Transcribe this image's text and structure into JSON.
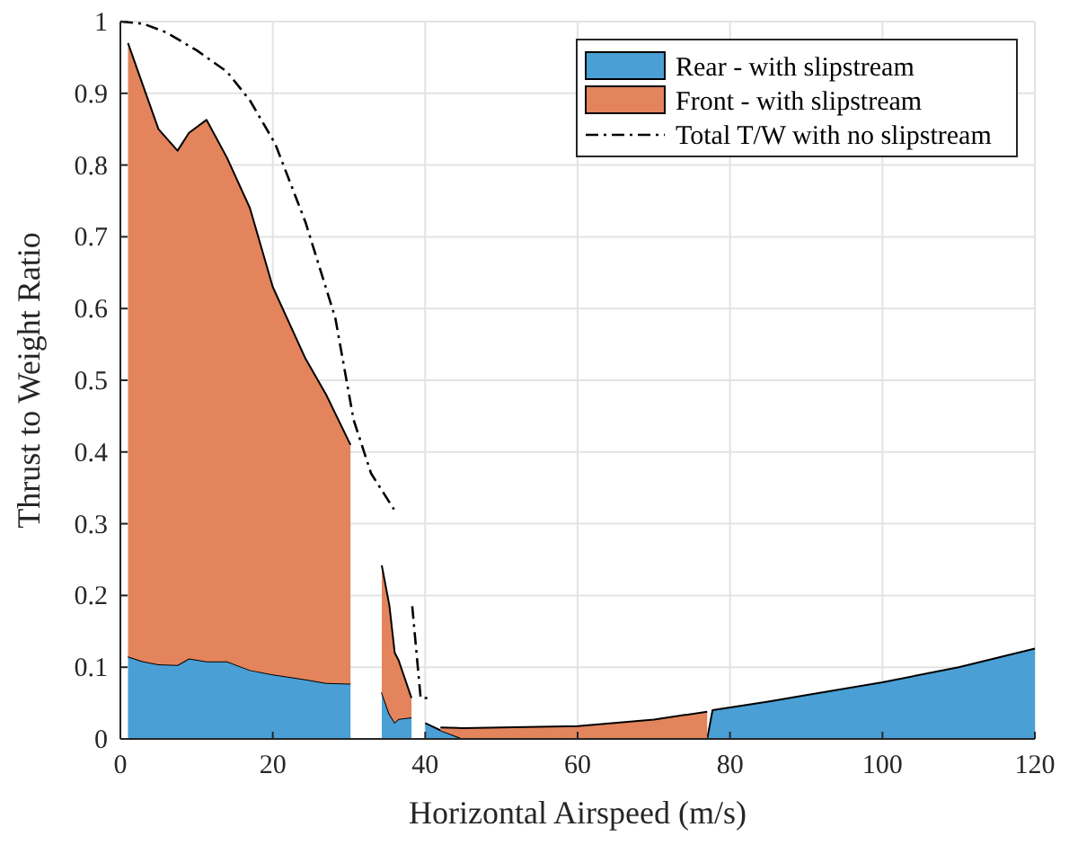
{
  "chart_data": {
    "type": "area",
    "stacked": true,
    "xlabel": "Horizontal Airspeed (m/s)",
    "ylabel": "Thrust to Weight Ratio",
    "x": [
      1,
      3,
      5,
      7.5,
      9,
      11.3,
      14,
      17,
      20,
      24.3,
      27,
      30.2,
      32,
      34.3,
      35.3,
      36,
      36.5,
      38.2,
      39,
      40,
      42,
      45,
      50,
      60,
      70,
      77,
      77.7,
      85,
      90,
      100,
      110,
      120
    ],
    "series": [
      {
        "name": "Rear - with slipstream",
        "color": "#4a9fd4",
        "values": [
          0.115,
          0.108,
          0.104,
          0.103,
          0.112,
          0.108,
          0.108,
          0.096,
          0.09,
          0.083,
          0.078,
          0.077,
          null,
          0.065,
          0.035,
          0.023,
          0.028,
          0.03,
          null,
          0.022,
          0.012,
          0,
          0,
          0,
          0,
          0,
          0.04,
          0.052,
          0.061,
          0.079,
          0.1,
          0.126
        ]
      },
      {
        "name": "Front - with slipstream",
        "color": "#e3845c",
        "values": [
          0.855,
          0.802,
          0.746,
          0.717,
          0.733,
          0.755,
          0.702,
          0.644,
          0.54,
          0.447,
          0.402,
          0.333,
          null,
          0.177,
          0.151,
          0.097,
          0.082,
          0.027,
          null,
          null,
          0.004,
          0.015,
          0.016,
          0.018,
          0.027,
          0.038,
          null,
          null,
          null,
          null,
          null,
          null
        ]
      },
      {
        "name": "Total T/W with no slipstream",
        "type": "line",
        "color": "#000000",
        "line_style": "dashdot",
        "x": [
          0,
          3,
          6,
          10,
          14,
          17,
          20.3,
          24.3,
          28.2,
          30.6,
          32.9,
          35.9,
          37,
          38.3,
          39.4,
          40.5
        ],
        "values": [
          1,
          0.997,
          0.985,
          0.96,
          0.93,
          0.89,
          0.83,
          0.72,
          0.587,
          0.445,
          0.37,
          0.32,
          null,
          0.185,
          0.057,
          0.057
        ]
      }
    ],
    "xlim": [
      0,
      120
    ],
    "xticks": [
      0,
      20,
      40,
      60,
      80,
      100,
      120
    ],
    "ylim": [
      0,
      1
    ],
    "yticks": [
      0,
      0.1,
      0.2,
      0.3,
      0.4,
      0.5,
      0.6,
      0.7,
      0.8,
      0.9,
      1
    ],
    "grid": true,
    "legend": "top right"
  }
}
